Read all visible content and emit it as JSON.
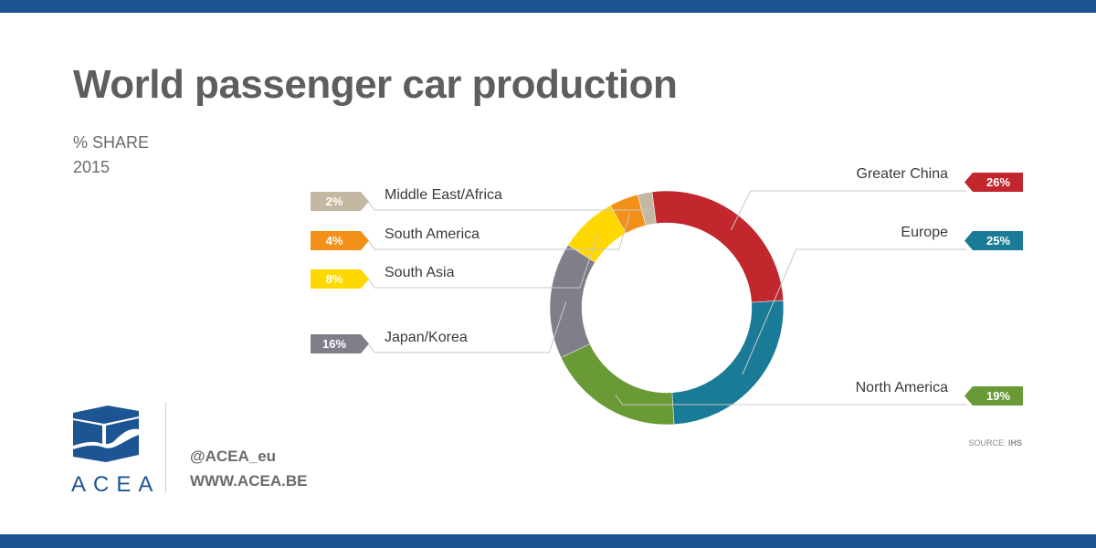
{
  "header": {
    "title": "World passenger car production",
    "subtitle_line1": "% SHARE",
    "subtitle_line2": "2015"
  },
  "colors": {
    "brand_blue": "#1d5493",
    "connector": "#c8c8c8",
    "label_text": "#3a3a3a"
  },
  "chart_data": {
    "type": "pie",
    "style": "donut",
    "title": "World passenger car production",
    "subtitle": "% SHARE 2015",
    "unit": "%",
    "slices": [
      {
        "label": "Greater China",
        "value": 26,
        "display": "26%",
        "color": "#c1272d"
      },
      {
        "label": "Europe",
        "value": 25,
        "display": "25%",
        "color": "#1a7b97"
      },
      {
        "label": "North America",
        "value": 19,
        "display": "19%",
        "color": "#6a9a36"
      },
      {
        "label": "Japan/Korea",
        "value": 16,
        "display": "16%",
        "color": "#7f7f89"
      },
      {
        "label": "South Asia",
        "value": 8,
        "display": "8%",
        "color": "#ffd800"
      },
      {
        "label": "South America",
        "value": 4,
        "display": "4%",
        "color": "#f39019"
      },
      {
        "label": "Middle East/Africa",
        "value": 2,
        "display": "2%",
        "color": "#c4b8a2"
      }
    ]
  },
  "footer": {
    "logo_text": "ACEA",
    "twitter": "@ACEA_eu",
    "website": "WWW.ACEA.BE",
    "source_label": "SOURCE:",
    "source_value": "IHS"
  }
}
